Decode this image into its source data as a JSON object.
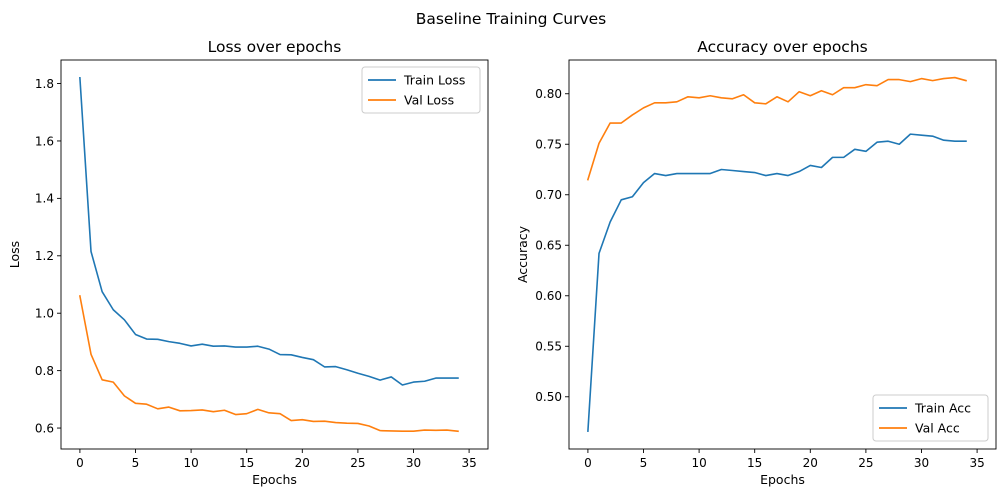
{
  "figure": {
    "suptitle": "Baseline Training Curves"
  },
  "chart_data": [
    {
      "type": "line",
      "title": "Loss over epochs",
      "xlabel": "Epochs",
      "ylabel": "Loss",
      "xlim": [
        -1.7,
        36.7
      ],
      "ylim": [
        0.527,
        1.882
      ],
      "xticks": [
        "0",
        "5",
        "10",
        "15",
        "20",
        "25",
        "30",
        "35"
      ],
      "xtick_values": [
        0,
        5,
        10,
        15,
        20,
        25,
        30,
        35
      ],
      "yticks": [
        "0.6",
        "0.8",
        "1.0",
        "1.2",
        "1.4",
        "1.6",
        "1.8"
      ],
      "ytick_values": [
        0.6,
        0.8,
        1.0,
        1.2,
        1.4,
        1.6,
        1.8
      ],
      "grid": false,
      "legend": "top-right",
      "x": [
        0,
        1,
        2,
        3,
        4,
        5,
        6,
        7,
        8,
        9,
        10,
        11,
        12,
        13,
        14,
        15,
        16,
        17,
        18,
        19,
        20,
        21,
        22,
        23,
        24,
        25,
        26,
        27,
        28,
        29,
        30,
        31,
        32,
        33,
        34
      ],
      "series": [
        {
          "name": "Train Loss",
          "color": "#1f77b4",
          "values": [
            1.82,
            1.215,
            1.075,
            1.012,
            0.977,
            0.926,
            0.91,
            0.909,
            0.901,
            0.895,
            0.886,
            0.892,
            0.885,
            0.886,
            0.882,
            0.882,
            0.885,
            0.875,
            0.856,
            0.855,
            0.846,
            0.838,
            0.813,
            0.814,
            0.803,
            0.791,
            0.78,
            0.767,
            0.778,
            0.75,
            0.76,
            0.763,
            0.774,
            0.774,
            0.774
          ]
        },
        {
          "name": "Val Loss",
          "color": "#ff7f0e",
          "values": [
            1.06,
            0.857,
            0.768,
            0.76,
            0.712,
            0.686,
            0.683,
            0.667,
            0.673,
            0.66,
            0.661,
            0.663,
            0.657,
            0.662,
            0.647,
            0.65,
            0.665,
            0.653,
            0.65,
            0.626,
            0.629,
            0.623,
            0.624,
            0.619,
            0.617,
            0.616,
            0.607,
            0.591,
            0.59,
            0.589,
            0.589,
            0.593,
            0.592,
            0.593,
            0.589
          ]
        }
      ]
    },
    {
      "type": "line",
      "title": "Accuracy over epochs",
      "xlabel": "Epochs",
      "ylabel": "Accuracy",
      "xlim": [
        -1.7,
        36.7
      ],
      "ylim": [
        0.4483,
        0.8334
      ],
      "xticks": [
        "0",
        "5",
        "10",
        "15",
        "20",
        "25",
        "30",
        "35"
      ],
      "xtick_values": [
        0,
        5,
        10,
        15,
        20,
        25,
        30,
        35
      ],
      "yticks": [
        "0.50",
        "0.55",
        "0.60",
        "0.65",
        "0.70",
        "0.75",
        "0.80"
      ],
      "ytick_values": [
        0.5,
        0.55,
        0.6,
        0.65,
        0.7,
        0.75,
        0.8
      ],
      "grid": false,
      "legend": "bottom-right",
      "x": [
        0,
        1,
        2,
        3,
        4,
        5,
        6,
        7,
        8,
        9,
        10,
        11,
        12,
        13,
        14,
        15,
        16,
        17,
        18,
        19,
        20,
        21,
        22,
        23,
        24,
        25,
        26,
        27,
        28,
        29,
        30,
        31,
        32,
        33,
        34
      ],
      "series": [
        {
          "name": "Train Acc",
          "color": "#1f77b4",
          "values": [
            0.466,
            0.642,
            0.673,
            0.695,
            0.698,
            0.712,
            0.721,
            0.719,
            0.721,
            0.721,
            0.721,
            0.721,
            0.725,
            0.724,
            0.723,
            0.722,
            0.719,
            0.721,
            0.719,
            0.723,
            0.729,
            0.727,
            0.737,
            0.737,
            0.745,
            0.743,
            0.752,
            0.753,
            0.75,
            0.76,
            0.759,
            0.758,
            0.754,
            0.753,
            0.753
          ]
        },
        {
          "name": "Val Acc",
          "color": "#ff7f0e",
          "values": [
            0.715,
            0.751,
            0.771,
            0.771,
            0.779,
            0.786,
            0.791,
            0.791,
            0.792,
            0.797,
            0.796,
            0.798,
            0.796,
            0.795,
            0.799,
            0.791,
            0.79,
            0.797,
            0.792,
            0.802,
            0.798,
            0.803,
            0.799,
            0.806,
            0.806,
            0.809,
            0.808,
            0.814,
            0.814,
            0.812,
            0.815,
            0.813,
            0.815,
            0.816,
            0.813
          ]
        }
      ]
    }
  ]
}
